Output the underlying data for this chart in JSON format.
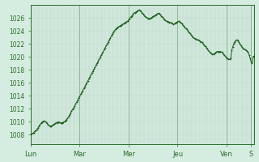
{
  "bg_color": "#d4ede0",
  "line_color": "#1a5c1a",
  "marker_color": "#1a5c1a",
  "grid_color_minor": "#b8d4c4",
  "grid_color_major": "#90b898",
  "axis_color": "#2a6c2a",
  "tick_label_color": "#2a6c2a",
  "ylim": [
    1006.5,
    1028.0
  ],
  "yticks": [
    1008,
    1010,
    1012,
    1014,
    1016,
    1018,
    1020,
    1022,
    1024,
    1026
  ],
  "x_day_labels": [
    "Lun",
    "Mar",
    "Mer",
    "Jeu",
    "Ven",
    "S"
  ],
  "x_day_positions": [
    0,
    48,
    96,
    144,
    192,
    216
  ],
  "xlim": [
    0,
    219
  ],
  "data_y": [
    1008.0,
    1008.1,
    1008.2,
    1008.3,
    1008.5,
    1008.6,
    1008.8,
    1009.0,
    1009.3,
    1009.5,
    1009.7,
    1009.9,
    1010.0,
    1010.1,
    1010.0,
    1009.9,
    1009.7,
    1009.5,
    1009.4,
    1009.3,
    1009.3,
    1009.4,
    1009.5,
    1009.6,
    1009.7,
    1009.8,
    1009.9,
    1009.9,
    1009.9,
    1009.8,
    1009.8,
    1009.8,
    1009.9,
    1010.0,
    1010.1,
    1010.3,
    1010.5,
    1010.7,
    1011.0,
    1011.3,
    1011.6,
    1011.9,
    1012.1,
    1012.4,
    1012.7,
    1013.0,
    1013.3,
    1013.6,
    1013.9,
    1014.2,
    1014.5,
    1014.8,
    1015.1,
    1015.4,
    1015.7,
    1016.0,
    1016.3,
    1016.6,
    1016.9,
    1017.2,
    1017.5,
    1017.8,
    1018.1,
    1018.4,
    1018.7,
    1019.0,
    1019.3,
    1019.6,
    1019.9,
    1020.2,
    1020.5,
    1020.8,
    1021.1,
    1021.4,
    1021.7,
    1022.0,
    1022.3,
    1022.6,
    1022.9,
    1023.2,
    1023.5,
    1023.8,
    1024.0,
    1024.2,
    1024.4,
    1024.5,
    1024.6,
    1024.7,
    1024.8,
    1024.9,
    1025.0,
    1025.1,
    1025.2,
    1025.3,
    1025.4,
    1025.5,
    1025.7,
    1025.9,
    1026.1,
    1026.3,
    1026.5,
    1026.7,
    1026.8,
    1026.9,
    1027.0,
    1027.1,
    1027.2,
    1027.1,
    1027.0,
    1026.8,
    1026.6,
    1026.4,
    1026.2,
    1026.1,
    1026.0,
    1025.9,
    1025.9,
    1025.9,
    1026.0,
    1026.1,
    1026.2,
    1026.3,
    1026.4,
    1026.5,
    1026.6,
    1026.7,
    1026.6,
    1026.5,
    1026.3,
    1026.1,
    1025.9,
    1025.8,
    1025.6,
    1025.5,
    1025.4,
    1025.4,
    1025.3,
    1025.3,
    1025.2,
    1025.1,
    1025.0,
    1025.1,
    1025.2,
    1025.3,
    1025.4,
    1025.5,
    1025.4,
    1025.3,
    1025.1,
    1024.9,
    1024.7,
    1024.5,
    1024.4,
    1024.2,
    1024.0,
    1023.8,
    1023.6,
    1023.4,
    1023.2,
    1023.0,
    1022.9,
    1022.8,
    1022.7,
    1022.6,
    1022.6,
    1022.5,
    1022.4,
    1022.3,
    1022.2,
    1022.0,
    1021.8,
    1021.6,
    1021.4,
    1021.2,
    1021.0,
    1020.8,
    1020.6,
    1020.5,
    1020.4,
    1020.4,
    1020.5,
    1020.6,
    1020.7,
    1020.8,
    1020.8,
    1020.8,
    1020.8,
    1020.7,
    1020.6,
    1020.4,
    1020.2,
    1020.0,
    1019.8,
    1019.7,
    1019.6,
    1019.6,
    1019.7,
    1021.0,
    1021.5,
    1022.0,
    1022.3,
    1022.5,
    1022.6,
    1022.5,
    1022.3,
    1022.0,
    1021.7,
    1021.5,
    1021.3,
    1021.2,
    1021.1,
    1021.0,
    1020.9,
    1020.7,
    1020.3,
    1019.8,
    1019.3,
    1019.0,
    1020.0,
    1020.1,
    1020.2,
    1020.1,
    1020.0
  ]
}
